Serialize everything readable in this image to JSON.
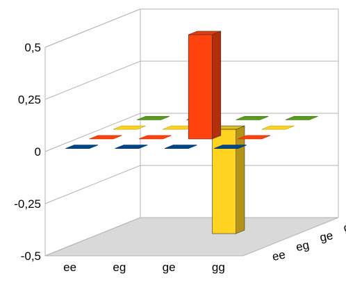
{
  "chart_data": {
    "type": "bar3d",
    "title": "",
    "xlabel": "",
    "ylabel": "",
    "zlim": [
      -0.5,
      0.5
    ],
    "z_ticks": [
      "0,5",
      "0,25",
      "0",
      "-0,25",
      "-0,5"
    ],
    "x_categories": [
      "ee",
      "eg",
      "ge",
      "gg"
    ],
    "depth_categories": [
      "ee",
      "eg",
      "ge",
      "gg"
    ],
    "grid": true,
    "legend": "none",
    "series": [
      {
        "color": "#004586",
        "values": [
          0,
          0,
          0,
          0
        ]
      },
      {
        "color": "#ff420e",
        "values": [
          0,
          0,
          0.5,
          0
        ]
      },
      {
        "color": "#ffd320",
        "values": [
          0,
          0,
          -0.5,
          0
        ]
      },
      {
        "color": "#579d1c",
        "values": [
          0,
          0,
          0,
          0
        ]
      }
    ]
  }
}
